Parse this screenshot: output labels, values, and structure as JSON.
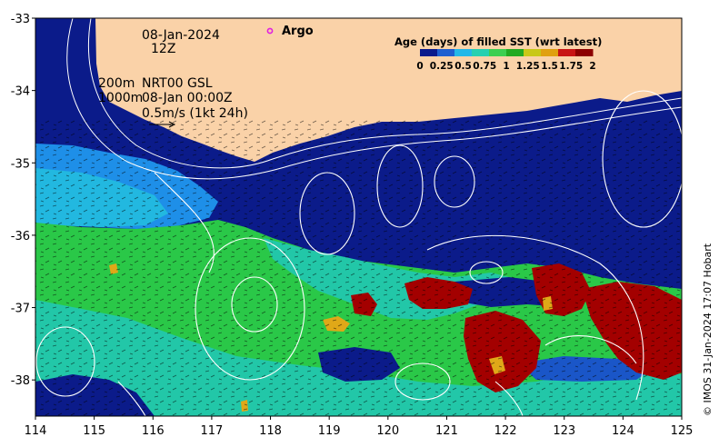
{
  "map": {
    "date_label": "08-Jan-2024",
    "time_label": "12Z",
    "argo_label": "Argo",
    "depth_200_label": "200m",
    "depth_1000_label": "1000m",
    "product_label": "NRT00 GSL",
    "product_time_label": "08-Jan 00:00Z",
    "velocity_scale_label": "0.5m/s (1kt 24h)",
    "credit": "© IMOS 31-Jan-2024 17:07 Hobart",
    "lon_ticks": [
      "114",
      "115",
      "116",
      "117",
      "118",
      "119",
      "120",
      "121",
      "122",
      "123",
      "124",
      "125"
    ],
    "lat_ticks": [
      "-33",
      "-34",
      "-35",
      "-36",
      "-37",
      "-38"
    ],
    "extent": {
      "lon": [
        114,
        125
      ],
      "lat": [
        -38.5,
        -33
      ]
    },
    "icons": {
      "argo": "argo-float-icon",
      "arrow": "velocity-scale-arrow-icon"
    }
  },
  "legend": {
    "title": "Age (days) of filled SST (wrt latest)",
    "ticks": [
      "0",
      "0.25",
      "0.5",
      "0.75",
      "1",
      "1.25",
      "1.5",
      "1.75",
      "2"
    ],
    "colors": [
      "#0a1a8c",
      "#1e5fd0",
      "#22b8e8",
      "#26d0b0",
      "#3ccf50",
      "#22aa22",
      "#c8c818",
      "#e0a010",
      "#c81414",
      "#8c0000"
    ]
  },
  "colors": {
    "land": "#fad2a8",
    "ocean_recent": "#0b1b8a",
    "age_quarter": "#1e7fe0",
    "age_half": "#20c0c8",
    "age_one": "#2acb4a",
    "age_old": "#a00000",
    "contour": "#ffffff"
  }
}
